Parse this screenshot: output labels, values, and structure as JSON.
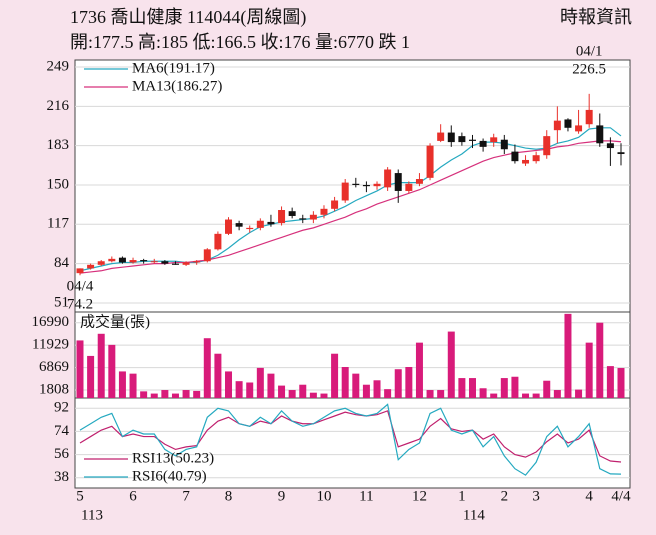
{
  "header": {
    "title": "1736  喬山健康 114044(周線圖)",
    "source": "時報資訊",
    "stats": "開:177.5 高:185 低:166.5 收:176 量:6770 跌 1"
  },
  "chart_data": [
    {
      "type": "candlestick",
      "categories": [
        "5",
        null,
        null,
        null,
        null,
        "6",
        null,
        null,
        null,
        null,
        "7",
        null,
        null,
        null,
        "8",
        null,
        null,
        null,
        null,
        "9",
        null,
        null,
        null,
        "10",
        null,
        null,
        null,
        "11",
        null,
        null,
        null,
        null,
        "12",
        null,
        null,
        null,
        "1",
        null,
        null,
        null,
        "2",
        null,
        null,
        "3",
        null,
        null,
        null,
        null,
        "4",
        null,
        null,
        "4/4"
      ],
      "year_labels": [
        "113",
        null,
        null,
        null,
        null,
        null,
        null,
        null,
        null,
        null,
        null,
        null,
        null,
        null,
        null,
        null,
        null,
        null,
        null,
        null,
        null,
        null,
        null,
        null,
        null,
        null,
        null,
        null,
        null,
        null,
        null,
        null,
        null,
        null,
        null,
        null,
        "114",
        null,
        null,
        null,
        null,
        null,
        null,
        null,
        null,
        null,
        null,
        null,
        null,
        null,
        null,
        null
      ],
      "open": [
        76,
        80,
        83,
        86,
        89,
        85,
        87,
        86,
        86,
        84,
        83,
        85,
        86,
        96,
        109,
        118,
        113,
        114,
        119,
        118,
        128,
        122,
        121,
        125,
        130,
        137,
        151,
        150,
        149,
        148,
        160,
        145,
        151,
        156,
        187,
        194,
        191,
        188,
        187,
        186,
        188,
        178,
        168,
        170,
        175,
        196,
        205,
        195,
        201,
        200,
        185,
        177.5
      ],
      "high": [
        80,
        84,
        87,
        90,
        90,
        89,
        88,
        88,
        87,
        86,
        86,
        87,
        97,
        111,
        123,
        120,
        116,
        122,
        125,
        132,
        131,
        125,
        128,
        133,
        140,
        155,
        156,
        153,
        153,
        165,
        163,
        153,
        160,
        185,
        201,
        200,
        194,
        192,
        189,
        193,
        192,
        184,
        175,
        178,
        196,
        216,
        206,
        213,
        226.5,
        210,
        190,
        185
      ],
      "low": [
        74.2,
        79,
        82,
        85,
        84,
        84,
        84,
        84,
        83,
        83,
        82,
        83,
        85,
        95,
        108,
        112,
        110,
        112,
        115,
        116,
        122,
        118,
        118,
        122,
        128,
        135,
        148,
        144,
        146,
        145,
        135,
        143,
        149,
        154,
        186,
        182,
        183,
        181,
        178,
        182,
        176,
        168,
        166,
        168,
        172,
        185,
        195,
        193,
        198,
        182,
        166,
        166.5
      ],
      "close": [
        80,
        83,
        86,
        88,
        85,
        87,
        86,
        86,
        84,
        83,
        85,
        86,
        96,
        109,
        121,
        115,
        114,
        120,
        117,
        129,
        124,
        121,
        125,
        130,
        137,
        152,
        150,
        149,
        151,
        163,
        145,
        151,
        155,
        183,
        194,
        186,
        186,
        187,
        182,
        190,
        180,
        170,
        171,
        175,
        191,
        204,
        198,
        200,
        213,
        185,
        181,
        176
      ],
      "up_color": "#e8302a",
      "down_color": "#111111",
      "series": [
        {
          "name": "MA6(191.17)",
          "color": "#25a9c0",
          "values": [
            78,
            80,
            82,
            84,
            85,
            85,
            86,
            86,
            86,
            86,
            85,
            85,
            87,
            91,
            97,
            104,
            110,
            115,
            117,
            119,
            120,
            121,
            122,
            124,
            128,
            132,
            137,
            141,
            145,
            150,
            152,
            152,
            152,
            158,
            165,
            171,
            176,
            183,
            186,
            186,
            185,
            183,
            181,
            180,
            181,
            185,
            187,
            190,
            197,
            198,
            198,
            191.17
          ]
        },
        {
          "name": "MA13(186.27)",
          "color": "#d6317c",
          "values": [
            76,
            77,
            78,
            80,
            81,
            82,
            83,
            84,
            84,
            85,
            85,
            86,
            87,
            89,
            91,
            94,
            97,
            100,
            103,
            106,
            109,
            112,
            114,
            117,
            120,
            123,
            127,
            130,
            134,
            137,
            140,
            143,
            146,
            150,
            154,
            158,
            162,
            166,
            170,
            173,
            175,
            177,
            178,
            179,
            180,
            182,
            183,
            185,
            186,
            187,
            187,
            186.27
          ]
        }
      ],
      "annotations": [
        {
          "date": "04/1",
          "value": 226.5,
          "at": "high"
        },
        {
          "date": "04/4",
          "value": 74.2,
          "at": "low"
        }
      ],
      "ylim": [
        43.4,
        254.9
      ],
      "yticks": [
        51,
        84,
        117,
        150,
        183,
        216,
        249
      ],
      "grid": true
    },
    {
      "type": "bar",
      "title": "成交量(張)",
      "color": "#d81b7a",
      "values": [
        13000,
        9500,
        14500,
        12000,
        6000,
        5500,
        1500,
        1000,
        1800,
        1000,
        1800,
        1600,
        13500,
        10000,
        6000,
        3800,
        3500,
        6800,
        5500,
        2800,
        1800,
        3000,
        1200,
        1000,
        10000,
        7000,
        5500,
        3000,
        4000,
        2000,
        6500,
        7000,
        12500,
        1800,
        1800,
        15000,
        4500,
        4500,
        2200,
        1000,
        4500,
        4800,
        1000,
        1000,
        3900,
        1800,
        19000,
        1900,
        12500,
        17000,
        7200,
        6770
      ],
      "ylim": [
        0,
        19420
      ],
      "yticks": [
        1808,
        6869,
        11929,
        16990
      ],
      "grid": true
    },
    {
      "type": "line",
      "series": [
        {
          "name": "RSI13(50.23)",
          "color": "#c0206e",
          "values": [
            65,
            70,
            75,
            78,
            70,
            72,
            70,
            70,
            64,
            60,
            62,
            63,
            75,
            82,
            85,
            80,
            78,
            82,
            80,
            86,
            82,
            80,
            80,
            83,
            86,
            89,
            87,
            86,
            87,
            90,
            62,
            65,
            68,
            78,
            84,
            76,
            74,
            75,
            68,
            72,
            62,
            56,
            54,
            58,
            66,
            72,
            65,
            68,
            75,
            55,
            51,
            50.23
          ]
        },
        {
          "name": "RSI6(40.79)",
          "color": "#25a9c0",
          "values": [
            75,
            80,
            85,
            88,
            70,
            75,
            72,
            72,
            60,
            55,
            60,
            62,
            85,
            92,
            90,
            80,
            78,
            85,
            80,
            90,
            82,
            78,
            80,
            85,
            90,
            92,
            88,
            86,
            88,
            95,
            52,
            60,
            65,
            88,
            92,
            75,
            72,
            75,
            62,
            70,
            55,
            45,
            40,
            50,
            70,
            78,
            62,
            70,
            80,
            45,
            41,
            40.79
          ]
        }
      ],
      "ylim": [
        30,
        100
      ],
      "yticks": [
        38,
        56,
        74,
        92
      ],
      "grid": true
    }
  ]
}
